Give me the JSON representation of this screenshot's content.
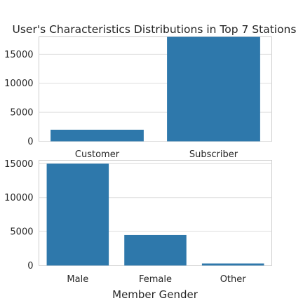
{
  "title": "User's Characteristics Distributions in Top 7 Stations",
  "colors": {
    "bar": "#2e78ab",
    "grid": "#dddddd",
    "frame": "#cccccc",
    "text": "#262626"
  },
  "chart_data": [
    {
      "type": "bar",
      "categories": [
        "Customer",
        "Subscriber"
      ],
      "values": [
        2000,
        18000
      ],
      "xlabel": "",
      "ylabel": "",
      "ylim": [
        0,
        18000
      ],
      "yticks": [
        0,
        5000,
        10000,
        15000
      ],
      "ytick_labels": [
        "0",
        "5000",
        "10000",
        "15000"
      ],
      "grid": true
    },
    {
      "type": "bar",
      "categories": [
        "Male",
        "Female",
        "Other"
      ],
      "values": [
        15000,
        4500,
        300
      ],
      "xlabel": "Member Gender",
      "ylabel": "",
      "ylim": [
        0,
        15500
      ],
      "yticks": [
        0,
        5000,
        10000,
        15000
      ],
      "ytick_labels": [
        "0",
        "5000",
        "10000",
        "15000"
      ],
      "grid": true
    }
  ]
}
